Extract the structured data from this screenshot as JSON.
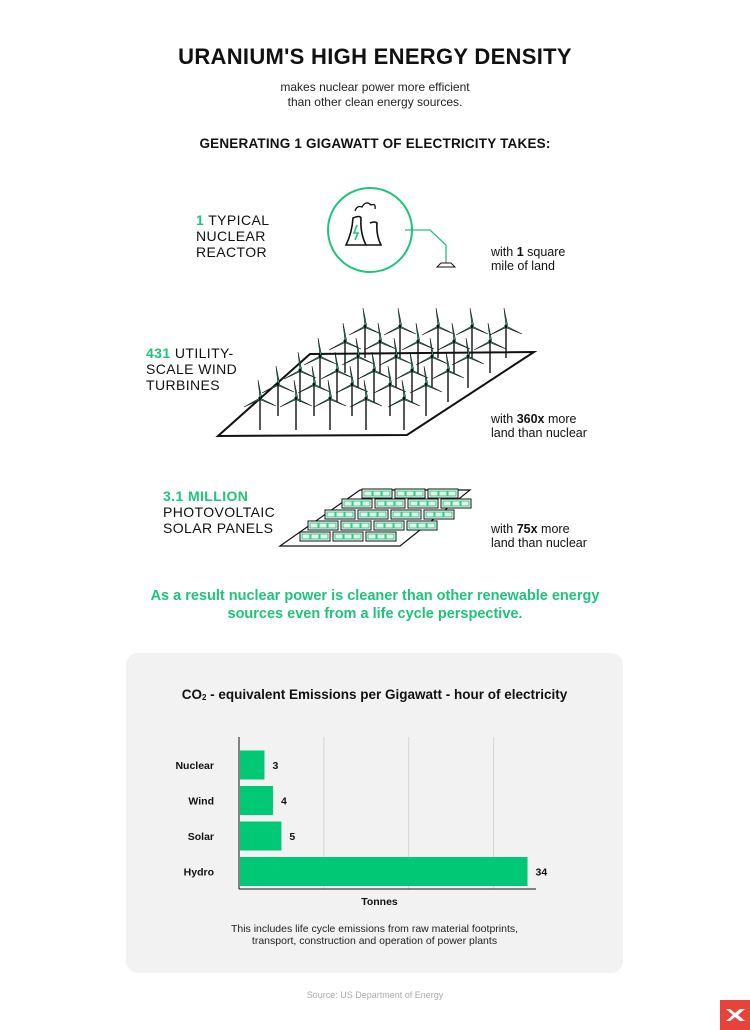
{
  "header": {
    "title": "URANIUM'S HIGH ENERGY DENSITY",
    "subtitle_line1": "makes nuclear power more efficient",
    "subtitle_line2": "than other clean energy sources."
  },
  "section_heading": "GENERATING 1 GIGAWATT OF ELECTRICITY TAKES:",
  "sources": {
    "nuclear": {
      "count": "1",
      "label_line1_rest": " TYPICAL",
      "label_line2": "NUCLEAR",
      "label_line3": "REACTOR",
      "land_pre": "with ",
      "land_bold": "1",
      "land_post": " square",
      "land_line2": "mile of land"
    },
    "wind": {
      "count": "431",
      "label_line1_rest": " UTILITY-",
      "label_line2": "SCALE WIND",
      "label_line3": "TURBINES",
      "land_bold": "360x",
      "land_post": " more",
      "land_line2": "land than nuclear"
    },
    "solar": {
      "count": "3.1 MILLION",
      "label_line2": "PHOTOVOLTAIC",
      "label_line3": "SOLAR PANELS",
      "land_bold": "75x",
      "land_post": " more",
      "land_line2": "land than nuclear"
    }
  },
  "conclusion_line1": "As a result nuclear power is cleaner than other renewable energy",
  "conclusion_line2": "sources even from a life cycle perspective.",
  "chart_data": {
    "type": "bar",
    "orientation": "horizontal",
    "title_prefix": "CO",
    "title_sub": "2",
    "title_rest": " - equivalent Emissions per Gigawatt - hour of electricity",
    "categories": [
      "Nuclear",
      "Wind",
      "Solar",
      "Hydro"
    ],
    "values": [
      3,
      4,
      5,
      34
    ],
    "xlabel": "Tonnes",
    "xlim": [
      0,
      35
    ],
    "gridlines": [
      10,
      20,
      30
    ],
    "bar_color": "#00c875",
    "grid": true,
    "footnote_line1": "This includes life cycle emissions from raw material footprints,",
    "footnote_line2": "transport, construction and operation of power plants"
  },
  "source_note": "Source: US Department of Energy",
  "colors": {
    "accent": "#1ec47a",
    "card_bg": "#f2f2f2",
    "logo": "#e8433a"
  },
  "icons": [
    "nuclear-plant-icon",
    "wind-turbine-icon",
    "solar-panel-icon",
    "brand-logo-icon"
  ]
}
